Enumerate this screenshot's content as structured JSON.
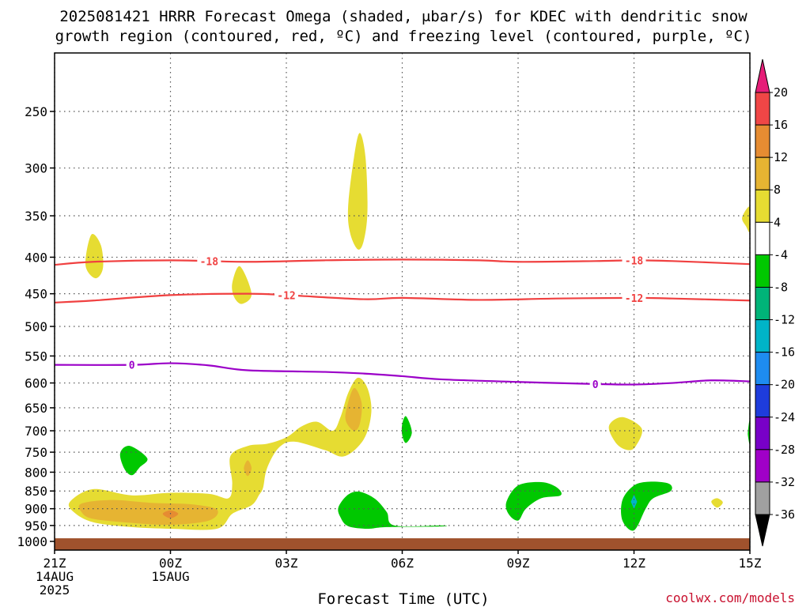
{
  "title_line1": "2025081421 HRRR Forecast Omega (shaded, μbar/s) for KDEC with dendritic snow",
  "title_line2": "growth region (contoured, red, ºC) and freezing level (contoured, purple, ºC)",
  "xlabel": "Forecast Time (UTC)",
  "credit": "coolwx.com/models",
  "colors": {
    "dgz": "#f04040",
    "freezing": "#9b00c8",
    "ground": "#a0522d",
    "grid": "#555555",
    "omega_4_8": "#e6dc32",
    "omega_8_12": "#e6b432",
    "omega_12_16": "#e68c32",
    "omega_neg4_neg8": "#00c800"
  },
  "chart_data": {
    "type": "time-height contour",
    "x_ticks": [
      {
        "hour": 0,
        "label": "21Z",
        "sub1": "14AUG",
        "sub2": "2025"
      },
      {
        "hour": 3,
        "label": "00Z",
        "sub1": "15AUG",
        "sub2": ""
      },
      {
        "hour": 6,
        "label": "03Z",
        "sub1": "",
        "sub2": ""
      },
      {
        "hour": 9,
        "label": "06Z",
        "sub1": "",
        "sub2": ""
      },
      {
        "hour": 12,
        "label": "09Z",
        "sub1": "",
        "sub2": ""
      },
      {
        "hour": 15,
        "label": "12Z",
        "sub1": "",
        "sub2": ""
      },
      {
        "hour": 18,
        "label": "15Z",
        "sub1": "",
        "sub2": ""
      }
    ],
    "xlim": [
      0,
      18
    ],
    "y_ticks": [
      250,
      300,
      350,
      400,
      450,
      500,
      550,
      600,
      650,
      700,
      750,
      800,
      850,
      900,
      950,
      1000
    ],
    "ylim_hPa": [
      200,
      1000
    ],
    "y_scale": "log-pressure",
    "colorbar": {
      "labels": [
        "20",
        "16",
        "12",
        "8",
        "4",
        "-4",
        "-8",
        "-12",
        "-16",
        "-20",
        "-24",
        "-28",
        "-32",
        "-36"
      ],
      "colors": [
        "#e61e78",
        "#f04646",
        "#e68c32",
        "#e6b432",
        "#e6dc32",
        "#ffffff",
        "#00c800",
        "#00b478",
        "#00b4c8",
        "#1e8cf0",
        "#1e3cdc",
        "#7800c8",
        "#a000c8",
        "#a0a0a0"
      ]
    },
    "contours": [
      {
        "name": "dgz_-18",
        "label": "-18",
        "color_key": "dgz",
        "points": [
          [
            0,
            410
          ],
          [
            1,
            406
          ],
          [
            3,
            404
          ],
          [
            5,
            406
          ],
          [
            7,
            404
          ],
          [
            9,
            403
          ],
          [
            11,
            404
          ],
          [
            12,
            406
          ],
          [
            14,
            405
          ],
          [
            15,
            404
          ],
          [
            16,
            405
          ],
          [
            18,
            409
          ]
        ],
        "label_at": [
          4,
          15
        ]
      },
      {
        "name": "dgz_-12",
        "label": "-12",
        "color_key": "dgz",
        "points": [
          [
            0,
            463
          ],
          [
            1,
            460
          ],
          [
            3,
            452
          ],
          [
            5,
            450
          ],
          [
            6,
            452
          ],
          [
            8,
            458
          ],
          [
            9,
            456
          ],
          [
            11,
            459
          ],
          [
            13,
            457
          ],
          [
            15,
            456
          ],
          [
            16,
            457
          ],
          [
            18,
            460
          ]
        ],
        "label_at": [
          6,
          15
        ]
      },
      {
        "name": "freezing_0",
        "label": "0",
        "color_key": "freezing",
        "points": [
          [
            0,
            566
          ],
          [
            2,
            566
          ],
          [
            3,
            563
          ],
          [
            4,
            567
          ],
          [
            5,
            576
          ],
          [
            7,
            579
          ],
          [
            8,
            582
          ],
          [
            9,
            587
          ],
          [
            10,
            593
          ],
          [
            12,
            598
          ],
          [
            14,
            602
          ],
          [
            15,
            603
          ],
          [
            16,
            600
          ],
          [
            17,
            595
          ],
          [
            18,
            597
          ]
        ],
        "label_at": [
          2,
          14
        ]
      }
    ],
    "omega_regions": [
      {
        "range": "4 to 8",
        "color_key": "omega_4_8",
        "points": [
          [
            0.8,
            410
          ],
          [
            0.95,
            372
          ],
          [
            1.2,
            385
          ],
          [
            1.25,
            415
          ],
          [
            1.05,
            428
          ]
        ]
      },
      {
        "range": "4 to 8",
        "color_key": "omega_4_8",
        "points": [
          [
            4.6,
            435
          ],
          [
            4.8,
            412
          ],
          [
            5.1,
            450
          ],
          [
            4.85,
            465
          ],
          [
            4.65,
            455
          ]
        ]
      },
      {
        "range": "4 to 8",
        "color_key": "omega_4_8",
        "points": [
          [
            7.6,
            340
          ],
          [
            7.75,
            290
          ],
          [
            7.9,
            268
          ],
          [
            8.05,
            290
          ],
          [
            8.1,
            345
          ],
          [
            8.0,
            380
          ],
          [
            7.85,
            390
          ],
          [
            7.65,
            370
          ]
        ]
      },
      {
        "range": "4 to 8",
        "color_key": "omega_4_8",
        "points": [
          [
            17.8,
            352
          ],
          [
            18,
            340
          ],
          [
            18,
            368
          ],
          [
            17.9,
            362
          ]
        ]
      },
      {
        "range": "4 to 8",
        "color_key": "omega_4_8",
        "points": [
          [
            0.4,
            880
          ],
          [
            1,
            845
          ],
          [
            2,
            862
          ],
          [
            3,
            855
          ],
          [
            4,
            858
          ],
          [
            4.5,
            870
          ],
          [
            4.6,
            830
          ],
          [
            4.55,
            760
          ],
          [
            5,
            735
          ],
          [
            5.5,
            730
          ],
          [
            6,
            715
          ],
          [
            6.4,
            690
          ],
          [
            6.8,
            680
          ],
          [
            7.2,
            700
          ],
          [
            7.4,
            670
          ],
          [
            7.6,
            620
          ],
          [
            7.85,
            590
          ],
          [
            8.1,
            610
          ],
          [
            8.2,
            660
          ],
          [
            8.0,
            720
          ],
          [
            7.5,
            760
          ],
          [
            7,
            745
          ],
          [
            6.2,
            725
          ],
          [
            5.8,
            740
          ],
          [
            5.5,
            790
          ],
          [
            5.4,
            840
          ],
          [
            5.3,
            860
          ],
          [
            5.1,
            890
          ],
          [
            4.6,
            915
          ],
          [
            4.2,
            960
          ],
          [
            3,
            960
          ],
          [
            2,
            955
          ],
          [
            1,
            940
          ],
          [
            0.5,
            910
          ]
        ]
      },
      {
        "range": "4 to 8",
        "color_key": "omega_4_8",
        "points": [
          [
            14.35,
            690
          ],
          [
            14.7,
            670
          ],
          [
            15.2,
            695
          ],
          [
            15.05,
            735
          ],
          [
            14.85,
            745
          ],
          [
            14.55,
            730
          ]
        ]
      },
      {
        "range": "4 to 8",
        "color_key": "omega_4_8",
        "points": [
          [
            17.0,
            880
          ],
          [
            17.15,
            870
          ],
          [
            17.3,
            882
          ],
          [
            17.15,
            897
          ]
        ]
      },
      {
        "range": "8 to 12",
        "color_key": "omega_8_12",
        "points": [
          [
            0.7,
            885
          ],
          [
            1.5,
            875
          ],
          [
            2.5,
            883
          ],
          [
            3.5,
            887
          ],
          [
            4.2,
            902
          ],
          [
            4.0,
            935
          ],
          [
            3,
            948
          ],
          [
            2,
            942
          ],
          [
            1,
            930
          ],
          [
            0.7,
            910
          ]
        ]
      },
      {
        "range": "8 to 12",
        "color_key": "omega_8_12",
        "points": [
          [
            7.55,
            655
          ],
          [
            7.75,
            610
          ],
          [
            7.95,
            640
          ],
          [
            7.9,
            685
          ],
          [
            7.75,
            700
          ],
          [
            7.55,
            680
          ]
        ]
      },
      {
        "range": "8 to 12",
        "color_key": "omega_8_12",
        "points": [
          [
            4.9,
            790
          ],
          [
            5.0,
            770
          ],
          [
            5.1,
            790
          ],
          [
            5.0,
            810
          ]
        ]
      },
      {
        "range": "12 to 16",
        "color_key": "omega_12_16",
        "points": [
          [
            2.8,
            915
          ],
          [
            3.0,
            905
          ],
          [
            3.2,
            915
          ],
          [
            3.0,
            928
          ]
        ]
      },
      {
        "range": "-4 to -8",
        "color_key": "omega_neg4_neg8",
        "points": [
          [
            1.7,
            752
          ],
          [
            1.95,
            735
          ],
          [
            2.4,
            765
          ],
          [
            2.2,
            788
          ],
          [
            2.0,
            808
          ],
          [
            1.8,
            790
          ]
        ]
      },
      {
        "range": "-4 to -8",
        "color_key": "omega_neg4_neg8",
        "points": [
          [
            7.35,
            895
          ],
          [
            7.6,
            860
          ],
          [
            7.9,
            852
          ],
          [
            8.3,
            872
          ],
          [
            8.6,
            910
          ],
          [
            8.8,
            950
          ],
          [
            10,
            950
          ],
          [
            10,
            953
          ],
          [
            8.6,
            955
          ],
          [
            8.1,
            960
          ],
          [
            7.6,
            952
          ],
          [
            7.4,
            925
          ]
        ]
      },
      {
        "range": "-4 to -8",
        "color_key": "omega_neg4_neg8",
        "points": [
          [
            9.0,
            685
          ],
          [
            9.1,
            668
          ],
          [
            9.25,
            703
          ],
          [
            9.1,
            728
          ],
          [
            9.0,
            710
          ]
        ]
      },
      {
        "range": "-4 to -8",
        "color_key": "omega_neg4_neg8",
        "points": [
          [
            11.7,
            880
          ],
          [
            12.0,
            835
          ],
          [
            12.6,
            826
          ],
          [
            13.0,
            840
          ],
          [
            13.1,
            862
          ],
          [
            12.6,
            870
          ],
          [
            12.2,
            900
          ],
          [
            12.0,
            935
          ],
          [
            11.75,
            915
          ]
        ]
      },
      {
        "range": "-4 to -8",
        "color_key": "omega_neg4_neg8",
        "points": [
          [
            14.7,
            875
          ],
          [
            15.0,
            835
          ],
          [
            15.4,
            825
          ],
          [
            15.9,
            830
          ],
          [
            15.95,
            850
          ],
          [
            15.5,
            870
          ],
          [
            15.3,
            900
          ],
          [
            15.0,
            965
          ],
          [
            14.7,
            935
          ]
        ]
      },
      {
        "range": "-4 to -8",
        "color_key": "omega_neg4_neg8",
        "points": [
          [
            17.95,
            700
          ],
          [
            18,
            675
          ],
          [
            18,
            730
          ],
          [
            17.95,
            712
          ]
        ]
      }
    ],
    "ground_top_hPa": 990
  }
}
